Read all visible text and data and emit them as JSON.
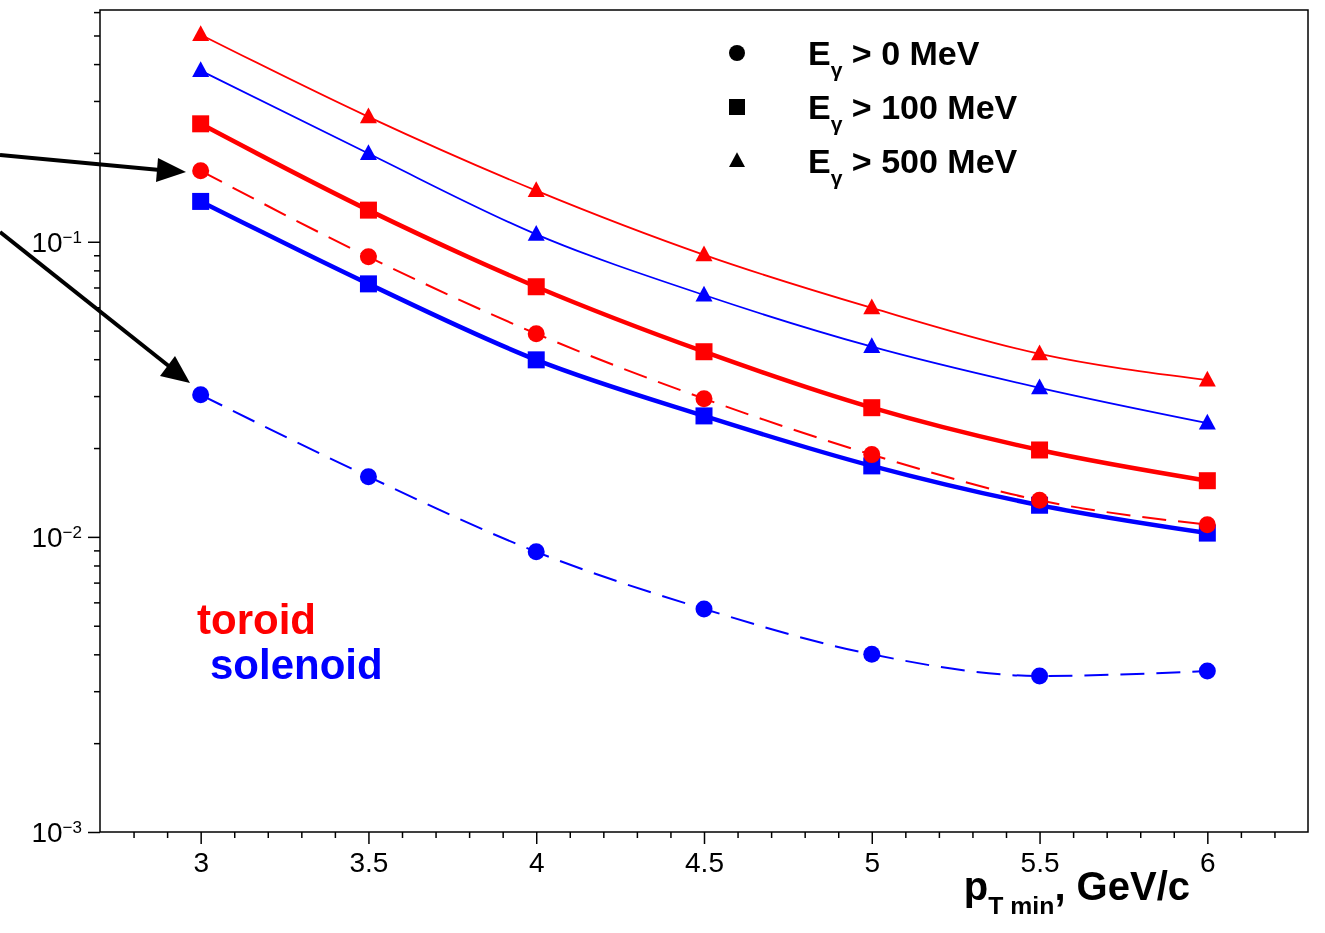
{
  "chart_data": {
    "type": "line",
    "xlabel": "p$_{T min}$, GeV/c",
    "log": "y",
    "xlim": [
      2.7,
      6.3
    ],
    "ylim": [
      0.001,
      0.61
    ],
    "xticks": [
      {
        "value": 2.8,
        "label": null
      },
      {
        "value": 2.9,
        "label": null
      },
      3,
      {
        "value": 3.1,
        "label": null
      },
      {
        "value": 3.2,
        "label": null
      },
      {
        "value": 3.3,
        "label": null
      },
      {
        "value": 3.4,
        "label": null
      },
      3.5,
      {
        "value": 3.6,
        "label": null
      },
      {
        "value": 3.7,
        "label": null
      },
      {
        "value": 3.8,
        "label": null
      },
      {
        "value": 3.9,
        "label": null
      },
      4,
      {
        "value": 4.1,
        "label": null
      },
      {
        "value": 4.2,
        "label": null
      },
      {
        "value": 4.3,
        "label": null
      },
      {
        "value": 4.4,
        "label": null
      },
      4.5,
      {
        "value": 4.6,
        "label": null
      },
      {
        "value": 4.7,
        "label": null
      },
      {
        "value": 4.8,
        "label": null
      },
      {
        "value": 4.9,
        "label": null
      },
      5,
      {
        "value": 5.1,
        "label": null
      },
      {
        "value": 5.2,
        "label": null
      },
      {
        "value": 5.3,
        "label": null
      },
      {
        "value": 5.4,
        "label": null
      },
      5.5,
      {
        "value": 5.6,
        "label": null
      },
      {
        "value": 5.7,
        "label": null
      },
      {
        "value": 5.8,
        "label": null
      },
      {
        "value": 5.9,
        "label": null
      },
      6,
      {
        "value": 6.1,
        "label": null
      },
      {
        "value": 6.2,
        "label": null
      }
    ],
    "yticks": [
      {
        "value": 0.001,
        "label": "10$^{−3}$"
      },
      {
        "value": 0.002,
        "label": null
      },
      {
        "value": 0.003,
        "label": null
      },
      {
        "value": 0.004,
        "label": null
      },
      {
        "value": 0.005,
        "label": null
      },
      {
        "value": 0.006,
        "label": null
      },
      {
        "value": 0.007,
        "label": null
      },
      {
        "value": 0.008,
        "label": null
      },
      {
        "value": 0.009,
        "label": null
      },
      {
        "value": 0.01,
        "label": "10$^{−2}$"
      },
      {
        "value": 0.02,
        "label": null
      },
      {
        "value": 0.03,
        "label": null
      },
      {
        "value": 0.04,
        "label": null
      },
      {
        "value": 0.05,
        "label": null
      },
      {
        "value": 0.06,
        "label": null
      },
      {
        "value": 0.07,
        "label": null
      },
      {
        "value": 0.08,
        "label": null
      },
      {
        "value": 0.09,
        "label": null
      },
      {
        "value": 0.1,
        "label": "10$^{−1}$"
      },
      {
        "value": 0.2,
        "label": null
      },
      {
        "value": 0.3,
        "label": null
      },
      {
        "value": 0.4,
        "label": null
      },
      {
        "value": 0.5,
        "label": null
      },
      {
        "value": 0.6,
        "label": null
      }
    ],
    "grid": false,
    "x": [
      3,
      3.5,
      4,
      4.5,
      5,
      5.5,
      6
    ],
    "series": [
      {
        "color": "#ff0000",
        "marker": "circle",
        "line_style": "dashed",
        "values": [
          0.174,
          0.0889,
          0.0488,
          0.0294,
          0.019,
          0.0133,
          0.011
        ]
      },
      {
        "color": "#0000ff",
        "marker": "circle",
        "line_style": "dashed",
        "values": [
          0.0303,
          0.016,
          0.0089,
          0.0057,
          0.004,
          0.00338,
          0.00351
        ]
      },
      {
        "color": "#ff0000",
        "marker": "square",
        "line_style": "solid",
        "values": [
          0.251,
          0.128,
          0.0704,
          0.0424,
          0.0274,
          0.0197,
          0.0155
        ]
      },
      {
        "color": "#0000ff",
        "marker": "square",
        "line_style": "solid",
        "values": [
          0.137,
          0.072,
          0.0398,
          0.0257,
          0.0174,
          0.0128,
          0.0103
        ]
      },
      {
        "color": "#ff0000",
        "marker": "triangle",
        "line_style": "solid",
        "values": [
          0.503,
          0.265,
          0.149,
          0.0903,
          0.0597,
          0.0417,
          0.034
        ]
      },
      {
        "color": "#0000ff",
        "marker": "triangle",
        "line_style": "solid",
        "values": [
          0.38,
          0.199,
          0.106,
          0.066,
          0.0441,
          0.032,
          0.0243
        ]
      }
    ],
    "annotations": [
      "E$_{γ}$ > 0 MeV",
      "E$_{γ}$ > 100 MeV",
      "E$_{γ}$ > 500 MeV",
      "toroid",
      "solenoid"
    ]
  }
}
